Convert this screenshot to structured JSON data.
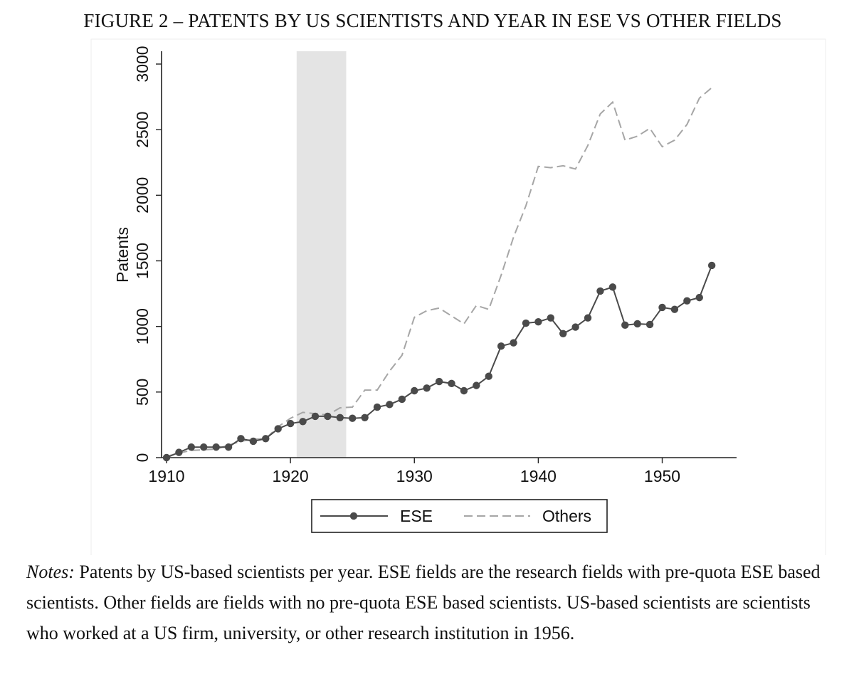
{
  "figure": {
    "title": "FIGURE 2 – PATENTS BY US SCIENTISTS AND YEAR IN ESE VS OTHER FIELDS",
    "notes_label": "Notes:",
    "notes_text": "Patents by US-based scientists per year. ESE fields are the research fields with pre-quota ESE based scientists. Other fields are fields with no pre-quota ESE based scientists. US-based scientists are scientists who worked at a US firm, university, or other research institution in 1956."
  },
  "chart_data": {
    "type": "line",
    "title": "FIGURE 2 – PATENTS BY US SCIENTISTS AND YEAR IN ESE VS OTHER FIELDS",
    "xlabel": "",
    "ylabel": "Patents",
    "xlim": [
      1910,
      1956
    ],
    "ylim": [
      0,
      3000
    ],
    "xticks": [
      1910,
      1920,
      1930,
      1940,
      1950
    ],
    "yticks": [
      0,
      500,
      1000,
      1500,
      2000,
      2500,
      3000
    ],
    "grid": false,
    "legend_position": "bottom-center",
    "shaded_region": {
      "x_start": 1920.5,
      "x_end": 1924.5,
      "color": "#e4e4e4"
    },
    "x": [
      1910,
      1911,
      1912,
      1913,
      1914,
      1915,
      1916,
      1917,
      1918,
      1919,
      1920,
      1921,
      1922,
      1923,
      1924,
      1925,
      1926,
      1927,
      1928,
      1929,
      1930,
      1931,
      1932,
      1933,
      1934,
      1935,
      1936,
      1937,
      1938,
      1939,
      1940,
      1941,
      1942,
      1943,
      1944,
      1945,
      1946,
      1947,
      1948,
      1949,
      1950,
      1951,
      1952,
      1953,
      1954
    ],
    "series": [
      {
        "name": "ESE",
        "style": "solid-markers",
        "color": "#4a4a4a",
        "values": [
          0,
          40,
          80,
          80,
          80,
          80,
          145,
          125,
          145,
          220,
          260,
          275,
          315,
          315,
          305,
          300,
          305,
          385,
          405,
          445,
          510,
          530,
          580,
          565,
          510,
          550,
          620,
          850,
          875,
          1025,
          1035,
          1065,
          945,
          995,
          1065,
          1270,
          1300,
          1010,
          1020,
          1015,
          1145,
          1130,
          1195,
          1220,
          1465
        ]
      },
      {
        "name": "Others",
        "style": "dashed",
        "color": "#a6a6a6",
        "values": [
          10,
          35,
          55,
          60,
          65,
          95,
          125,
          140,
          145,
          235,
          300,
          345,
          335,
          325,
          380,
          385,
          515,
          515,
          660,
          780,
          1070,
          1120,
          1140,
          1080,
          1020,
          1160,
          1130,
          1390,
          1680,
          1920,
          2220,
          2210,
          2225,
          2200,
          2380,
          2620,
          2710,
          2420,
          2450,
          2510,
          2370,
          2420,
          2540,
          2740,
          2820
        ]
      }
    ]
  }
}
